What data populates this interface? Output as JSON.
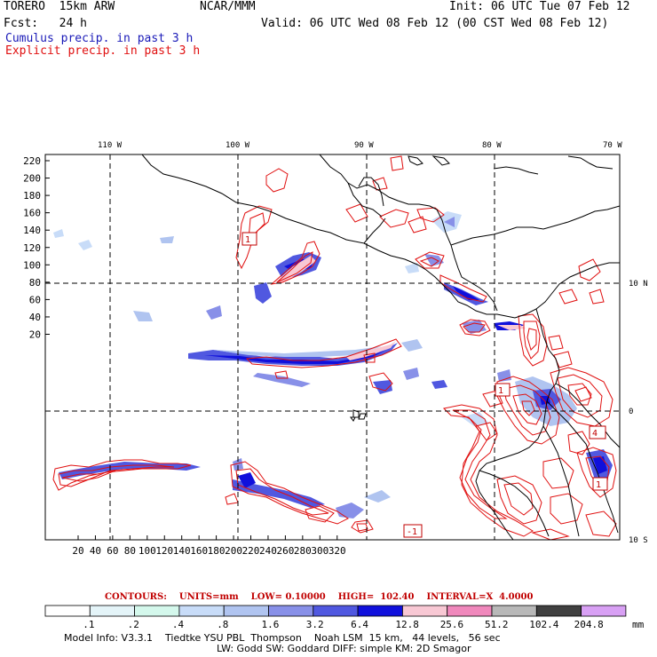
{
  "header": {
    "model": "TORERO  15km ARW",
    "org": "NCAR/MMM",
    "init": "Init: 06 UTC Tue 07 Feb 12",
    "fcst": "Fcst:   24 h",
    "valid": "Valid: 06 UTC Wed 08 Feb 12 (00 CST Wed 08 Feb 12)",
    "field1": "Cumulus precip. in past 3 h",
    "field2": "Explicit precip. in past 3 h"
  },
  "map": {
    "top_lon_labels": [
      "110 W",
      "100 W",
      "90 W",
      "80 W",
      "70 W"
    ],
    "right_lat_labels": [
      "10 N",
      "0",
      "10 S"
    ],
    "y_ticks": [
      "220",
      "200",
      "180",
      "160",
      "140",
      "120",
      "100",
      "80",
      "60",
      "40",
      "20"
    ],
    "x_ticks": [
      "20",
      "40",
      "60",
      "80",
      "100",
      "120",
      "140",
      "160",
      "180",
      "200",
      "220",
      "240",
      "260",
      "280",
      "300",
      "320"
    ],
    "box_labels": [
      "1",
      "1",
      "4",
      "1",
      "-1"
    ],
    "colors": {
      "cumulus": "#2222dd",
      "explicit": "#e01010",
      "grid": "#000000",
      "coast": "#000000"
    }
  },
  "contours": {
    "label": "CONTOURS:",
    "units": "UNITS=mm",
    "low": "LOW= 0.10000",
    "high": "HIGH=  102.40",
    "interval": "INTERVAL=X  4.0000"
  },
  "legend": {
    "labels": [
      ".1",
      ".2",
      ".4",
      ".8",
      "1.6",
      "3.2",
      "6.4",
      "12.8",
      "25.6",
      "51.2",
      "102.4",
      "204.8"
    ],
    "unit": "mm",
    "colors": [
      "#ffffff",
      "#e4f4f8",
      "#d4f8ec",
      "#c8dcf8",
      "#b0c4f0",
      "#8890e8",
      "#5058e0",
      "#1010dc",
      "#f8c8d4",
      "#f088bc",
      "#b8b8b8",
      "#404040",
      "#d8a0f4"
    ]
  },
  "model_info": {
    "line1": "Model Info: V3.3.1    Tiedtke YSU PBL  Thompson    Noah LSM  15 km,   44 levels,   56 sec",
    "line2": "LW: Godd SW: Goddard DIFF: simple KM: 2D Smagor"
  }
}
